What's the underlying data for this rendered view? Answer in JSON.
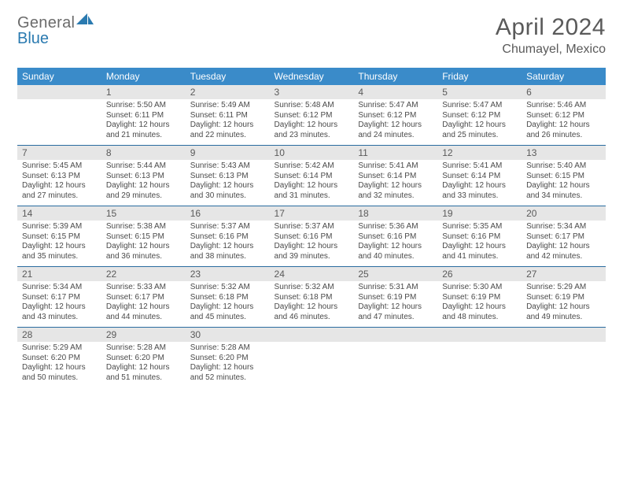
{
  "brand": {
    "general": "General",
    "blue": "Blue"
  },
  "title": "April 2024",
  "location": "Chumayel, Mexico",
  "header_bg": "#3a8bc9",
  "weekdays": [
    "Sunday",
    "Monday",
    "Tuesday",
    "Wednesday",
    "Thursday",
    "Friday",
    "Saturday"
  ],
  "labels": {
    "sunrise": "Sunrise:",
    "sunset": "Sunset:",
    "daylight": "Daylight:"
  },
  "start_offset": 1,
  "days_in_month": 30,
  "days": [
    {
      "n": 1,
      "sunrise": "5:50 AM",
      "sunset": "6:11 PM",
      "dl_h": 12,
      "dl_m": 21
    },
    {
      "n": 2,
      "sunrise": "5:49 AM",
      "sunset": "6:11 PM",
      "dl_h": 12,
      "dl_m": 22
    },
    {
      "n": 3,
      "sunrise": "5:48 AM",
      "sunset": "6:12 PM",
      "dl_h": 12,
      "dl_m": 23
    },
    {
      "n": 4,
      "sunrise": "5:47 AM",
      "sunset": "6:12 PM",
      "dl_h": 12,
      "dl_m": 24
    },
    {
      "n": 5,
      "sunrise": "5:47 AM",
      "sunset": "6:12 PM",
      "dl_h": 12,
      "dl_m": 25
    },
    {
      "n": 6,
      "sunrise": "5:46 AM",
      "sunset": "6:12 PM",
      "dl_h": 12,
      "dl_m": 26
    },
    {
      "n": 7,
      "sunrise": "5:45 AM",
      "sunset": "6:13 PM",
      "dl_h": 12,
      "dl_m": 27
    },
    {
      "n": 8,
      "sunrise": "5:44 AM",
      "sunset": "6:13 PM",
      "dl_h": 12,
      "dl_m": 29
    },
    {
      "n": 9,
      "sunrise": "5:43 AM",
      "sunset": "6:13 PM",
      "dl_h": 12,
      "dl_m": 30
    },
    {
      "n": 10,
      "sunrise": "5:42 AM",
      "sunset": "6:14 PM",
      "dl_h": 12,
      "dl_m": 31
    },
    {
      "n": 11,
      "sunrise": "5:41 AM",
      "sunset": "6:14 PM",
      "dl_h": 12,
      "dl_m": 32
    },
    {
      "n": 12,
      "sunrise": "5:41 AM",
      "sunset": "6:14 PM",
      "dl_h": 12,
      "dl_m": 33
    },
    {
      "n": 13,
      "sunrise": "5:40 AM",
      "sunset": "6:15 PM",
      "dl_h": 12,
      "dl_m": 34
    },
    {
      "n": 14,
      "sunrise": "5:39 AM",
      "sunset": "6:15 PM",
      "dl_h": 12,
      "dl_m": 35
    },
    {
      "n": 15,
      "sunrise": "5:38 AM",
      "sunset": "6:15 PM",
      "dl_h": 12,
      "dl_m": 36
    },
    {
      "n": 16,
      "sunrise": "5:37 AM",
      "sunset": "6:16 PM",
      "dl_h": 12,
      "dl_m": 38
    },
    {
      "n": 17,
      "sunrise": "5:37 AM",
      "sunset": "6:16 PM",
      "dl_h": 12,
      "dl_m": 39
    },
    {
      "n": 18,
      "sunrise": "5:36 AM",
      "sunset": "6:16 PM",
      "dl_h": 12,
      "dl_m": 40
    },
    {
      "n": 19,
      "sunrise": "5:35 AM",
      "sunset": "6:16 PM",
      "dl_h": 12,
      "dl_m": 41
    },
    {
      "n": 20,
      "sunrise": "5:34 AM",
      "sunset": "6:17 PM",
      "dl_h": 12,
      "dl_m": 42
    },
    {
      "n": 21,
      "sunrise": "5:34 AM",
      "sunset": "6:17 PM",
      "dl_h": 12,
      "dl_m": 43
    },
    {
      "n": 22,
      "sunrise": "5:33 AM",
      "sunset": "6:17 PM",
      "dl_h": 12,
      "dl_m": 44
    },
    {
      "n": 23,
      "sunrise": "5:32 AM",
      "sunset": "6:18 PM",
      "dl_h": 12,
      "dl_m": 45
    },
    {
      "n": 24,
      "sunrise": "5:32 AM",
      "sunset": "6:18 PM",
      "dl_h": 12,
      "dl_m": 46
    },
    {
      "n": 25,
      "sunrise": "5:31 AM",
      "sunset": "6:19 PM",
      "dl_h": 12,
      "dl_m": 47
    },
    {
      "n": 26,
      "sunrise": "5:30 AM",
      "sunset": "6:19 PM",
      "dl_h": 12,
      "dl_m": 48
    },
    {
      "n": 27,
      "sunrise": "5:29 AM",
      "sunset": "6:19 PM",
      "dl_h": 12,
      "dl_m": 49
    },
    {
      "n": 28,
      "sunrise": "5:29 AM",
      "sunset": "6:20 PM",
      "dl_h": 12,
      "dl_m": 50
    },
    {
      "n": 29,
      "sunrise": "5:28 AM",
      "sunset": "6:20 PM",
      "dl_h": 12,
      "dl_m": 51
    },
    {
      "n": 30,
      "sunrise": "5:28 AM",
      "sunset": "6:20 PM",
      "dl_h": 12,
      "dl_m": 52
    }
  ]
}
